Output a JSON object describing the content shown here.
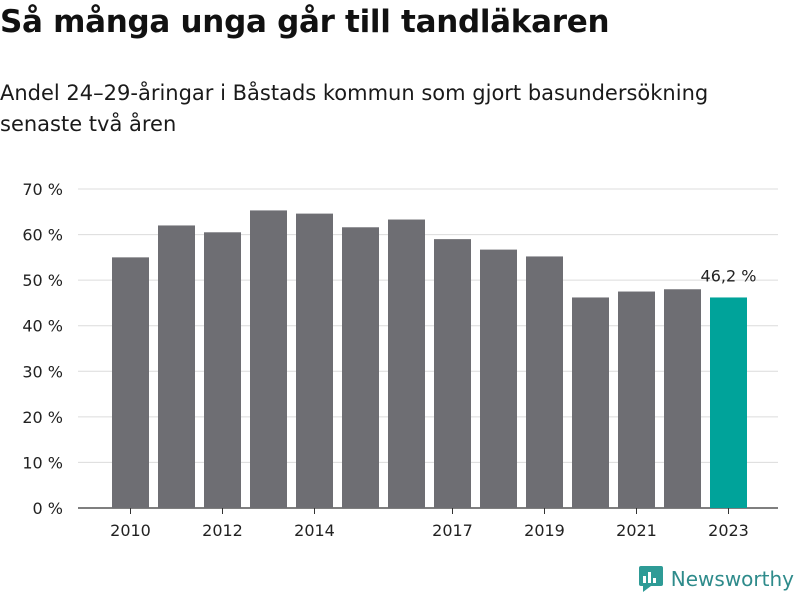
{
  "title": "Så många unga går till tandläkaren",
  "subtitle": "Andel 24–29-åringar i Båstads kommun som gjort basundersökning senaste två åren",
  "brand": {
    "name": "Newsworthy",
    "icon": "newsworthy-logo-icon",
    "color": "#2e9b96"
  },
  "colors": {
    "bar": "#6e6e73",
    "highlight": "#00a39a",
    "grid": "#dcdcdc"
  },
  "chart_data": {
    "type": "bar",
    "categories": [
      "2010",
      "2011",
      "2012",
      "2013",
      "2014",
      "2015",
      "2016",
      "2017",
      "2018",
      "2019",
      "2020",
      "2021",
      "2022",
      "2023"
    ],
    "values": [
      55.0,
      62.0,
      60.5,
      65.3,
      64.6,
      61.6,
      63.3,
      59.0,
      56.7,
      55.2,
      46.2,
      47.5,
      48.0,
      46.2
    ],
    "x_tick_labels": [
      "2010",
      "2012",
      "2014",
      "2017",
      "2019",
      "2021",
      "2023"
    ],
    "y_ticks": [
      0,
      10,
      20,
      30,
      40,
      50,
      60,
      70
    ],
    "y_tick_suffix": " %",
    "ylim": [
      0,
      70
    ],
    "highlight_index": 13,
    "data_labels": [
      {
        "index": 13,
        "text": "46,2 %"
      }
    ],
    "grid": true,
    "xlabel": "",
    "ylabel": ""
  }
}
